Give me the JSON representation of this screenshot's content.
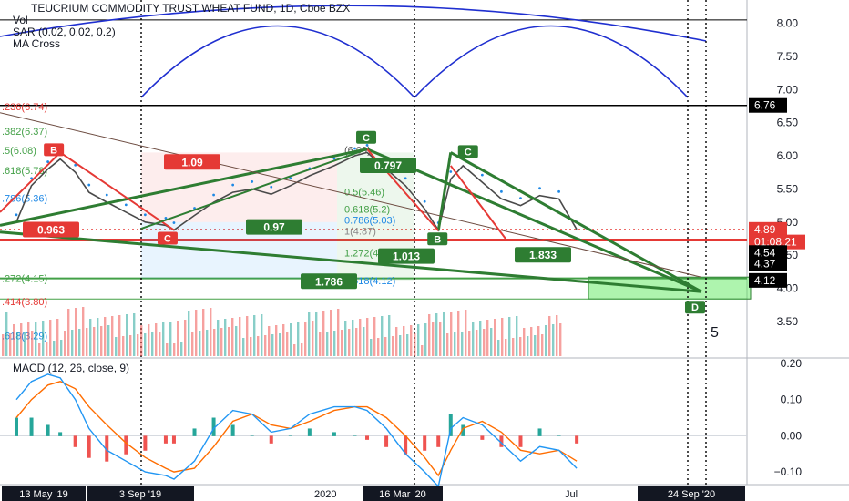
{
  "header": {
    "title": "TEUCRIUM COMMODITY TRUST WHEAT FUND, 1D, Cboe BZX",
    "indicators": [
      "Vol",
      "SAR (0.02, 0.02, 0.2)",
      "MA Cross"
    ]
  },
  "colors": {
    "up": "#26a69a",
    "down": "#ef5350",
    "pattern": "#2e7d32",
    "pattern_red": "#e53935",
    "macd": "#2196f3",
    "signal": "#ff6d00",
    "cycle": "#1f2fd0"
  },
  "chart_data": [
    {
      "type": "line",
      "title": "TEUCRIUM COMMODITY TRUST WHEAT FUND, 1D, Cboe BZX",
      "ylim": [
        2.95,
        8.35
      ],
      "y_ticks": [
        3.5,
        4.0,
        4.5,
        5.0,
        5.5,
        6.0,
        6.5,
        7.0,
        7.5,
        8.0
      ],
      "x_labels": [
        "13 May '19",
        "3 Sep '19",
        "2020",
        "16 Mar '20",
        "Jul",
        "24 Sep '20"
      ],
      "close": [
        [
          "2019-05-13",
          5.0
        ],
        [
          "2019-05-24",
          5.55
        ],
        [
          "2019-06-05",
          5.8
        ],
        [
          "2019-06-14",
          5.95
        ],
        [
          "2019-06-25",
          5.75
        ],
        [
          "2019-07-05",
          5.45
        ],
        [
          "2019-07-18",
          5.3
        ],
        [
          "2019-08-01",
          5.15
        ],
        [
          "2019-08-15",
          5.0
        ],
        [
          "2019-08-30",
          4.95
        ],
        [
          "2019-09-05",
          4.88
        ],
        [
          "2019-09-20",
          5.1
        ],
        [
          "2019-10-04",
          5.3
        ],
        [
          "2019-10-18",
          5.45
        ],
        [
          "2019-11-01",
          5.5
        ],
        [
          "2019-11-15",
          5.42
        ],
        [
          "2019-11-29",
          5.55
        ],
        [
          "2019-12-13",
          5.7
        ],
        [
          "2019-12-31",
          5.85
        ],
        [
          "2020-01-15",
          6.0
        ],
        [
          "2020-01-24",
          6.05
        ],
        [
          "2020-02-07",
          5.8
        ],
        [
          "2020-02-21",
          5.55
        ],
        [
          "2020-03-06",
          5.2
        ],
        [
          "2020-03-16",
          4.88
        ],
        [
          "2020-03-25",
          5.65
        ],
        [
          "2020-04-03",
          5.85
        ],
        [
          "2020-04-17",
          5.6
        ],
        [
          "2020-05-01",
          5.35
        ],
        [
          "2020-05-15",
          5.25
        ],
        [
          "2020-05-29",
          5.4
        ],
        [
          "2020-06-12",
          5.35
        ],
        [
          "2020-06-25",
          4.89
        ]
      ],
      "price_labels": [
        {
          "text": "6.76",
          "value": 6.76,
          "style": "black"
        },
        {
          "text": "4.89",
          "value": 4.89,
          "style": "red"
        },
        {
          "text": "01:08:21",
          "value": 4.7,
          "style": "red"
        },
        {
          "text": "4.54",
          "value": 4.54,
          "style": "black"
        },
        {
          "text": "4.37",
          "value": 4.37,
          "style": "black"
        },
        {
          "text": "4.12",
          "value": 4.12,
          "style": "black"
        }
      ],
      "fib_levels_left": [
        {
          "text": ".236(6.74)",
          "value": 6.74,
          "color": "#e53935"
        },
        {
          "text": ".382(6.37)",
          "value": 6.37,
          "color": "#43a047"
        },
        {
          "text": ".5(6.08)",
          "value": 6.08,
          "color": "#43a047"
        },
        {
          "text": ".618(5.78)",
          "value": 5.78,
          "color": "#43a047"
        },
        {
          "text": ".786(5.36)",
          "value": 5.36,
          "color": "#1e88e5"
        },
        {
          "text": ".272(4.15)",
          "value": 4.15,
          "color": "#43a047"
        },
        {
          "text": ".414(3.80)",
          "value": 3.8,
          "color": "#e53935"
        },
        {
          "text": ".618(3.29)",
          "value": 3.29,
          "color": "#1e88e5"
        }
      ],
      "fib_levels_right": [
        {
          "text": "(6.09)",
          "value": 6.09,
          "color": "#555555"
        },
        {
          "text": "0.5(5.46)",
          "value": 5.46,
          "color": "#43a047"
        },
        {
          "text": "0.618(5.2)",
          "value": 5.2,
          "color": "#43a047"
        },
        {
          "text": "0.786(5.03)",
          "value": 5.03,
          "color": "#1e88e5"
        },
        {
          "text": "1(4.87)",
          "value": 4.87,
          "color": "#888888"
        },
        {
          "text": "1.272(4.54)",
          "value": 4.54,
          "color": "#43a047"
        },
        {
          "text": "1.618(4.12)",
          "value": 4.12,
          "color": "#1e88e5"
        }
      ],
      "pattern_points": [
        {
          "label": "B",
          "date": "2019-06-14",
          "price": 6.05
        },
        {
          "label": "C",
          "date": "2019-09-05",
          "price": 4.88
        },
        {
          "label": "C",
          "date": "2020-01-24",
          "price": 6.1
        },
        {
          "label": "B",
          "date": "2020-03-16",
          "price": 4.87
        },
        {
          "label": "C",
          "date": "2020-03-25",
          "price": 6.05
        },
        {
          "label": "D",
          "date": "2020-09-24",
          "price": 3.95
        }
      ],
      "ratios": [
        {
          "text": "1.09",
          "color": "red"
        },
        {
          "text": "0.963",
          "color": "red"
        },
        {
          "text": "0.97",
          "color": "green"
        },
        {
          "text": "1.786",
          "color": "green"
        },
        {
          "text": "0.797",
          "color": "green"
        },
        {
          "text": "1.013",
          "color": "green"
        },
        {
          "text": "1.833",
          "color": "green"
        }
      ],
      "target_zone": {
        "top": 4.17,
        "bottom": 3.84
      },
      "red_line": 4.73,
      "side_number": "5"
    },
    {
      "type": "bar+line",
      "title": "MACD (12, 26, close, 9)",
      "ylim": [
        -0.135,
        0.215
      ],
      "y_ticks": [
        -0.1,
        0.0,
        0.1,
        0.2
      ],
      "macd": [
        [
          "2019-05-13",
          0.1
        ],
        [
          "2019-05-24",
          0.15
        ],
        [
          "2019-06-05",
          0.17
        ],
        [
          "2019-06-14",
          0.16
        ],
        [
          "2019-06-25",
          0.1
        ],
        [
          "2019-07-05",
          0.02
        ],
        [
          "2019-07-18",
          -0.04
        ],
        [
          "2019-08-01",
          -0.07
        ],
        [
          "2019-08-15",
          -0.1
        ],
        [
          "2019-08-30",
          -0.11
        ],
        [
          "2019-09-05",
          -0.12
        ],
        [
          "2019-09-20",
          -0.07
        ],
        [
          "2019-10-04",
          0.02
        ],
        [
          "2019-10-18",
          0.07
        ],
        [
          "2019-11-01",
          0.06
        ],
        [
          "2019-11-15",
          0.01
        ],
        [
          "2019-11-29",
          0.02
        ],
        [
          "2019-12-13",
          0.06
        ],
        [
          "2019-12-31",
          0.08
        ],
        [
          "2020-01-15",
          0.08
        ],
        [
          "2020-01-24",
          0.07
        ],
        [
          "2020-02-07",
          0.02
        ],
        [
          "2020-02-21",
          -0.05
        ],
        [
          "2020-03-06",
          -0.1
        ],
        [
          "2020-03-16",
          -0.14
        ],
        [
          "2020-03-25",
          0.02
        ],
        [
          "2020-04-03",
          0.05
        ],
        [
          "2020-04-17",
          0.03
        ],
        [
          "2020-05-01",
          -0.02
        ],
        [
          "2020-05-15",
          -0.07
        ],
        [
          "2020-05-29",
          -0.03
        ],
        [
          "2020-06-12",
          -0.04
        ],
        [
          "2020-06-25",
          -0.09
        ]
      ],
      "signal": [
        [
          "2019-05-13",
          0.05
        ],
        [
          "2019-05-24",
          0.1
        ],
        [
          "2019-06-05",
          0.14
        ],
        [
          "2019-06-14",
          0.15
        ],
        [
          "2019-06-25",
          0.13
        ],
        [
          "2019-07-05",
          0.08
        ],
        [
          "2019-07-18",
          0.03
        ],
        [
          "2019-08-01",
          -0.02
        ],
        [
          "2019-08-15",
          -0.06
        ],
        [
          "2019-08-30",
          -0.09
        ],
        [
          "2019-09-05",
          -0.1
        ],
        [
          "2019-09-20",
          -0.09
        ],
        [
          "2019-10-04",
          -0.03
        ],
        [
          "2019-10-18",
          0.04
        ],
        [
          "2019-11-01",
          0.06
        ],
        [
          "2019-11-15",
          0.03
        ],
        [
          "2019-11-29",
          0.02
        ],
        [
          "2019-12-13",
          0.04
        ],
        [
          "2019-12-31",
          0.07
        ],
        [
          "2020-01-15",
          0.08
        ],
        [
          "2020-01-24",
          0.08
        ],
        [
          "2020-02-07",
          0.05
        ],
        [
          "2020-02-21",
          0.0
        ],
        [
          "2020-03-06",
          -0.06
        ],
        [
          "2020-03-16",
          -0.11
        ],
        [
          "2020-03-25",
          -0.04
        ],
        [
          "2020-04-03",
          0.02
        ],
        [
          "2020-04-17",
          0.04
        ],
        [
          "2020-05-01",
          0.01
        ],
        [
          "2020-05-15",
          -0.04
        ],
        [
          "2020-05-29",
          -0.05
        ],
        [
          "2020-06-12",
          -0.04
        ],
        [
          "2020-06-25",
          -0.07
        ]
      ]
    }
  ]
}
